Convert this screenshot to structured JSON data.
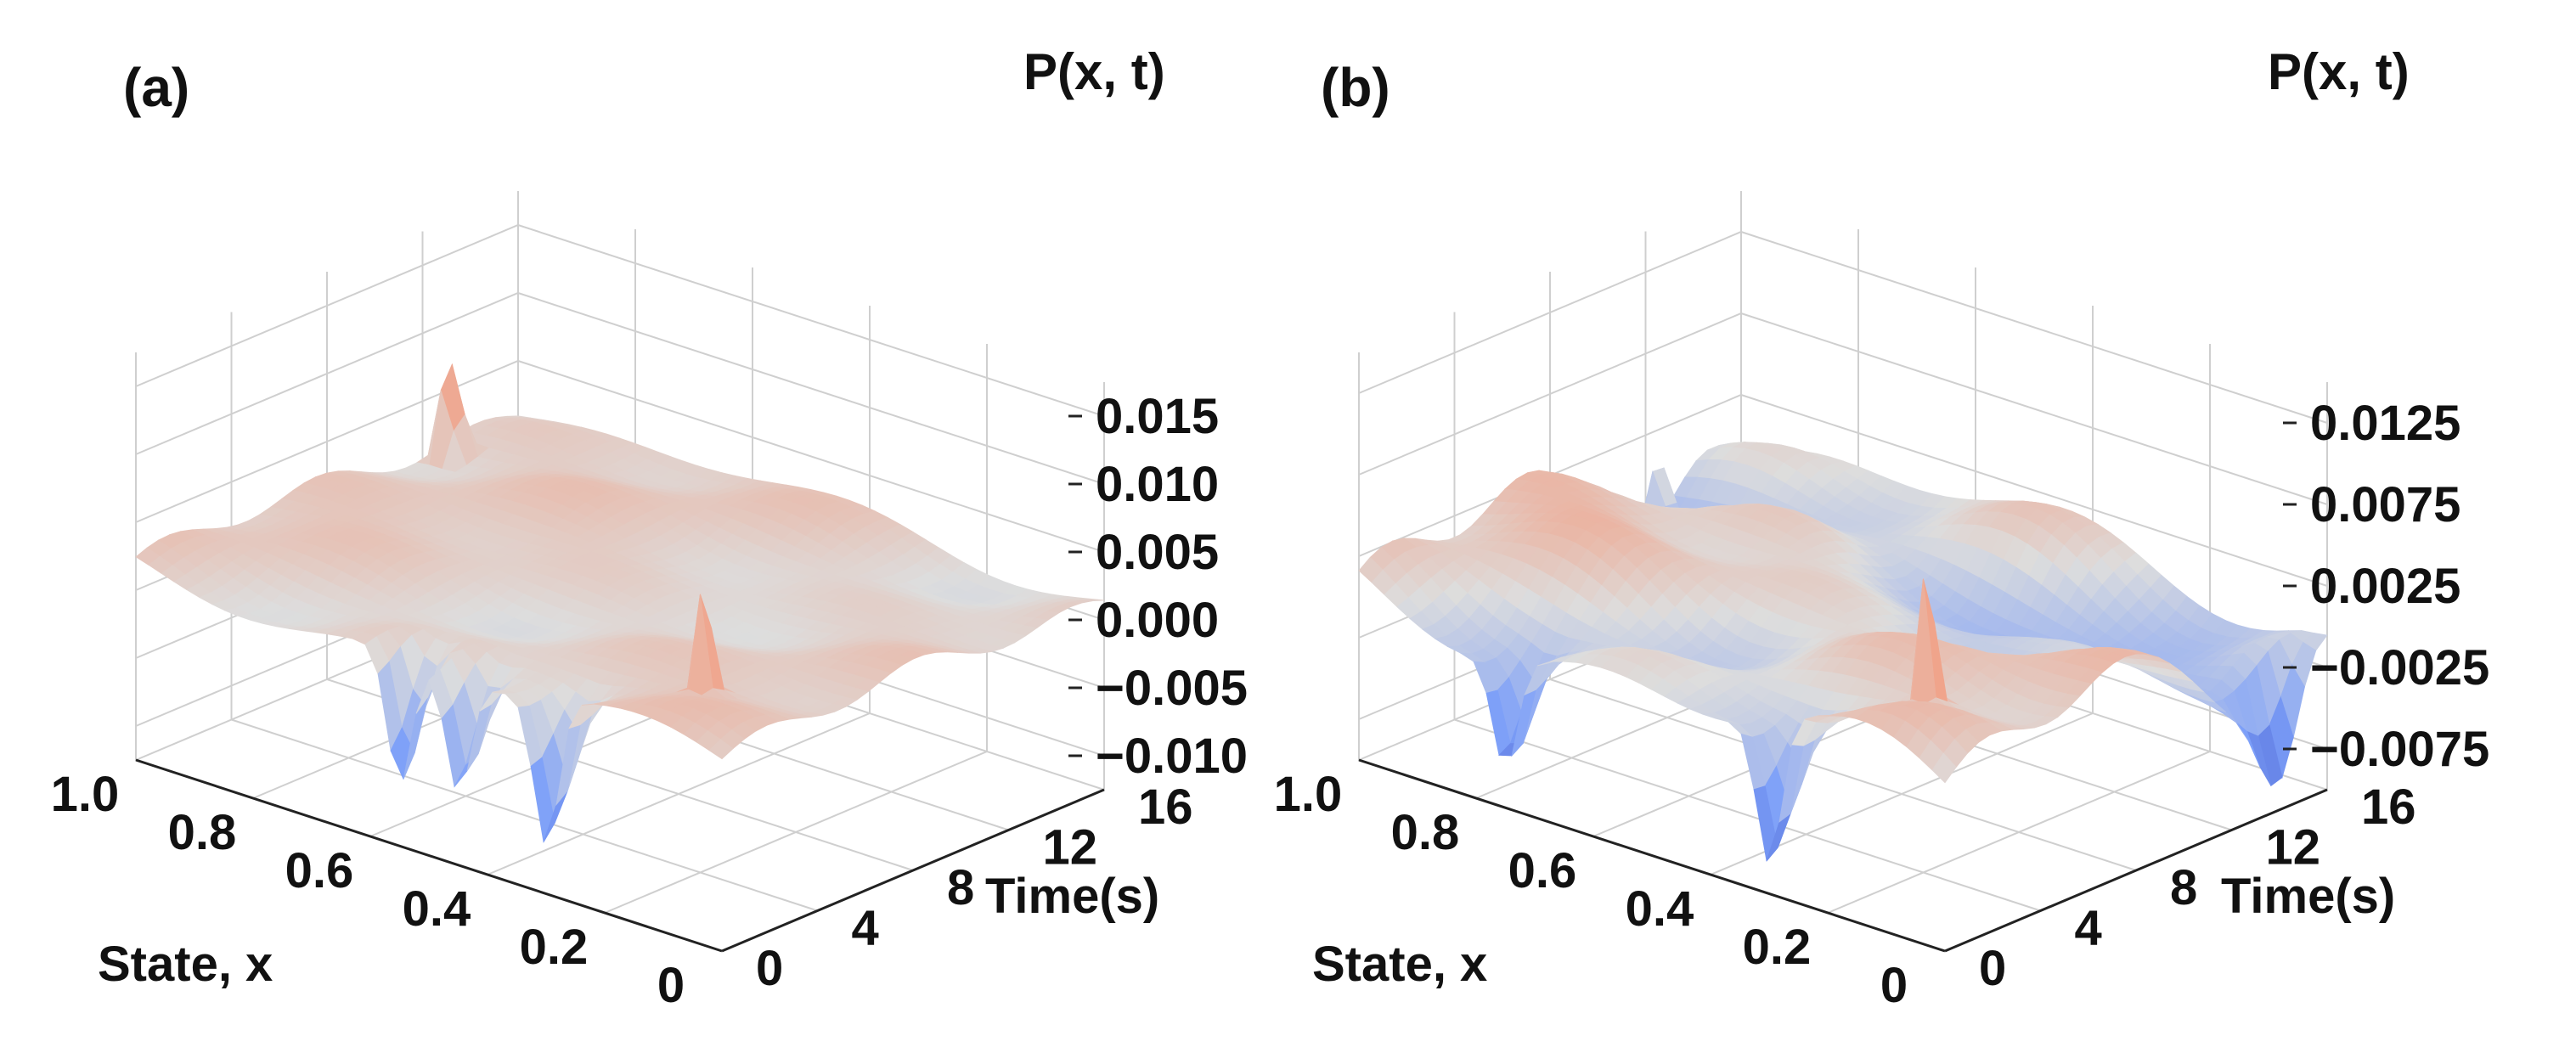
{
  "chart_data": [
    {
      "type": "surface3d",
      "panel_label": "(a)",
      "title": "",
      "zlabel": "P(x, t)",
      "xlabel": "State, x",
      "ylabel": "Time(s)",
      "x_ticks": [
        "1.0",
        "0.8",
        "0.6",
        "0.4",
        "0.2",
        "0"
      ],
      "y_ticks": [
        "0",
        "4",
        "8",
        "12",
        "16"
      ],
      "z_ticks": [
        "0.015",
        "0.010",
        "0.005",
        "0.000",
        "−0.005",
        "−0.010"
      ],
      "x_range": [
        0,
        1
      ],
      "y_range": [
        0,
        16
      ],
      "z_range": [
        -0.012,
        0.016
      ],
      "colormap": "coolwarm",
      "baseline": 0.0012,
      "ripple_amplitude": 0.0014,
      "spikes": [
        {
          "x": 0.97,
          "t": 12.5,
          "p": 0.0135
        },
        {
          "x": 0.15,
          "t": 3.0,
          "p": 0.009
        }
      ],
      "dips": [
        {
          "x": 0.55,
          "t": 0.0,
          "p": -0.009
        },
        {
          "x": 0.45,
          "t": 0.0,
          "p": -0.008
        },
        {
          "x": 0.3,
          "t": 0.0,
          "p": -0.01
        }
      ]
    },
    {
      "type": "surface3d",
      "panel_label": "(b)",
      "title": "",
      "zlabel": "P(x, t)",
      "xlabel": "State, x",
      "ylabel": "Time(s)",
      "x_ticks": [
        "1.0",
        "0.8",
        "0.6",
        "0.4",
        "0.2",
        "0"
      ],
      "y_ticks": [
        "0",
        "4",
        "8",
        "12",
        "16"
      ],
      "z_ticks": [
        "0.0125",
        "0.0075",
        "0.0025",
        "−0.0025",
        "−0.0075"
      ],
      "x_range": [
        0,
        1
      ],
      "y_range": [
        0,
        16
      ],
      "z_range": [
        -0.0095,
        0.0135
      ],
      "colormap": "coolwarm",
      "baseline": 0.0,
      "ripple_amplitude": 0.0022,
      "spikes": [
        {
          "x": 0.97,
          "t": 12.0,
          "p": 0.0085
        },
        {
          "x": 0.15,
          "t": 3.0,
          "p": 0.0095
        }
      ],
      "dips": [
        {
          "x": 0.75,
          "t": 0.0,
          "p": -0.006
        },
        {
          "x": 0.3,
          "t": 0.0,
          "p": -0.008
        },
        {
          "x": 0.0,
          "t": 14.0,
          "p": -0.0075
        }
      ]
    }
  ]
}
